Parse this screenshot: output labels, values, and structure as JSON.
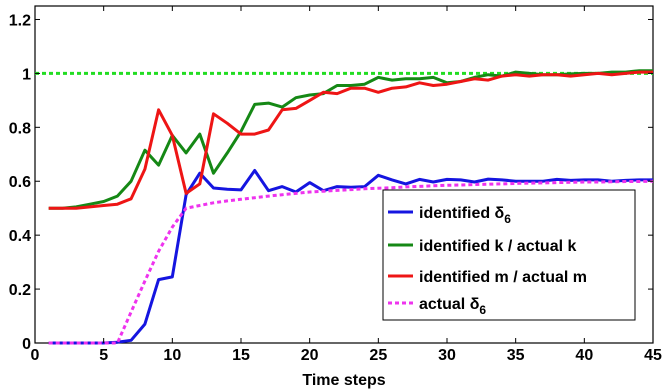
{
  "chart_data": {
    "type": "line",
    "xlabel": "Time steps",
    "ylabel": "",
    "xlim": [
      0,
      45
    ],
    "ylim": [
      0,
      1.25
    ],
    "x_ticks": [
      0,
      5,
      10,
      15,
      20,
      25,
      30,
      35,
      40,
      45
    ],
    "y_ticks": [
      0,
      0.2,
      0.4,
      0.6,
      0.8,
      1,
      1.2
    ],
    "x_tick_labels": [
      "0",
      "5",
      "10",
      "15",
      "20",
      "25",
      "30",
      "35",
      "40",
      "45"
    ],
    "y_tick_labels": [
      "0",
      "0.2",
      "0.4",
      "0.6",
      "0.8",
      "1",
      "1.2"
    ],
    "grid": false,
    "legend_position": "center-right",
    "reference_line": {
      "y": 1.0,
      "color": "#22dd22",
      "style": "dotted"
    },
    "series": [
      {
        "name": "identified δ6",
        "label_main": "identified δ",
        "label_sub": "6",
        "color": "#1515e0",
        "style": "solid",
        "x": [
          1,
          2,
          3,
          4,
          5,
          6,
          7,
          8,
          9,
          10,
          11,
          12,
          13,
          14,
          15,
          16,
          17,
          18,
          19,
          20,
          21,
          22,
          23,
          24,
          25,
          26,
          27,
          28,
          29,
          30,
          31,
          32,
          33,
          34,
          35,
          36,
          37,
          38,
          39,
          40,
          41,
          42,
          43,
          44,
          45
        ],
        "y": [
          0.0,
          0.0,
          0.0,
          0.0,
          0.0,
          0.003,
          0.01,
          0.07,
          0.235,
          0.245,
          0.55,
          0.63,
          0.575,
          0.57,
          0.568,
          0.64,
          0.565,
          0.58,
          0.56,
          0.595,
          0.565,
          0.58,
          0.578,
          0.58,
          0.622,
          0.605,
          0.59,
          0.607,
          0.597,
          0.607,
          0.605,
          0.597,
          0.608,
          0.605,
          0.6,
          0.6,
          0.6,
          0.607,
          0.603,
          0.605,
          0.605,
          0.6,
          0.603,
          0.605,
          0.605
        ]
      },
      {
        "name": "identified k / actual k",
        "label_main": "identified k / actual k",
        "label_sub": "",
        "color": "#158815",
        "style": "solid",
        "x": [
          1,
          2,
          3,
          4,
          5,
          6,
          7,
          8,
          9,
          10,
          11,
          12,
          13,
          14,
          15,
          16,
          17,
          18,
          19,
          20,
          21,
          22,
          23,
          24,
          25,
          26,
          27,
          28,
          29,
          30,
          31,
          32,
          33,
          34,
          35,
          36,
          37,
          38,
          39,
          40,
          41,
          42,
          43,
          44,
          45
        ],
        "y": [
          0.5,
          0.5,
          0.505,
          0.515,
          0.525,
          0.545,
          0.6,
          0.715,
          0.66,
          0.77,
          0.705,
          0.775,
          0.63,
          0.705,
          0.785,
          0.885,
          0.89,
          0.875,
          0.91,
          0.92,
          0.925,
          0.955,
          0.955,
          0.96,
          0.985,
          0.975,
          0.98,
          0.98,
          0.985,
          0.965,
          0.97,
          0.985,
          0.995,
          0.99,
          1.005,
          1.0,
          0.995,
          0.995,
          0.998,
          1.0,
          1.0,
          1.005,
          1.005,
          1.01,
          1.01
        ]
      },
      {
        "name": "identified m / actual m",
        "label_main": "identified m / actual m",
        "label_sub": "",
        "color": "#ee1515",
        "style": "solid",
        "x": [
          1,
          2,
          3,
          4,
          5,
          6,
          7,
          8,
          9,
          10,
          11,
          12,
          13,
          14,
          15,
          16,
          17,
          18,
          19,
          20,
          21,
          22,
          23,
          24,
          25,
          26,
          27,
          28,
          29,
          30,
          31,
          32,
          33,
          34,
          35,
          36,
          37,
          38,
          39,
          40,
          41,
          42,
          43,
          44,
          45
        ],
        "y": [
          0.5,
          0.5,
          0.5,
          0.505,
          0.51,
          0.515,
          0.535,
          0.645,
          0.865,
          0.77,
          0.555,
          0.59,
          0.85,
          0.815,
          0.775,
          0.775,
          0.79,
          0.865,
          0.87,
          0.9,
          0.93,
          0.925,
          0.945,
          0.945,
          0.93,
          0.945,
          0.95,
          0.965,
          0.955,
          0.96,
          0.97,
          0.98,
          0.975,
          0.99,
          0.995,
          0.99,
          0.995,
          0.995,
          0.99,
          0.995,
          1.0,
          0.995,
          1.0,
          1.005,
          1.005
        ]
      },
      {
        "name": "actual δ6",
        "label_main": "actual δ",
        "label_sub": "6",
        "color": "#ee33ee",
        "style": "dotted",
        "x": [
          1,
          2,
          3,
          4,
          5,
          6,
          7,
          8,
          9,
          10,
          11,
          12,
          13,
          14,
          15,
          16,
          17,
          18,
          19,
          20,
          21,
          22,
          23,
          24,
          25,
          26,
          27,
          28,
          29,
          30,
          31,
          32,
          33,
          34,
          35,
          36,
          37,
          38,
          39,
          40,
          41,
          42,
          43,
          44,
          45
        ],
        "y": [
          0.0,
          0.0,
          0.0,
          0.0,
          0.0,
          0.0,
          0.115,
          0.23,
          0.34,
          0.43,
          0.5,
          0.51,
          0.52,
          0.527,
          0.533,
          0.539,
          0.545,
          0.55,
          0.555,
          0.56,
          0.563,
          0.566,
          0.569,
          0.572,
          0.574,
          0.576,
          0.579,
          0.581,
          0.583,
          0.585,
          0.586,
          0.588,
          0.589,
          0.59,
          0.592,
          0.593,
          0.594,
          0.595,
          0.596,
          0.597,
          0.597,
          0.598,
          0.599,
          0.599,
          0.6
        ]
      }
    ]
  }
}
